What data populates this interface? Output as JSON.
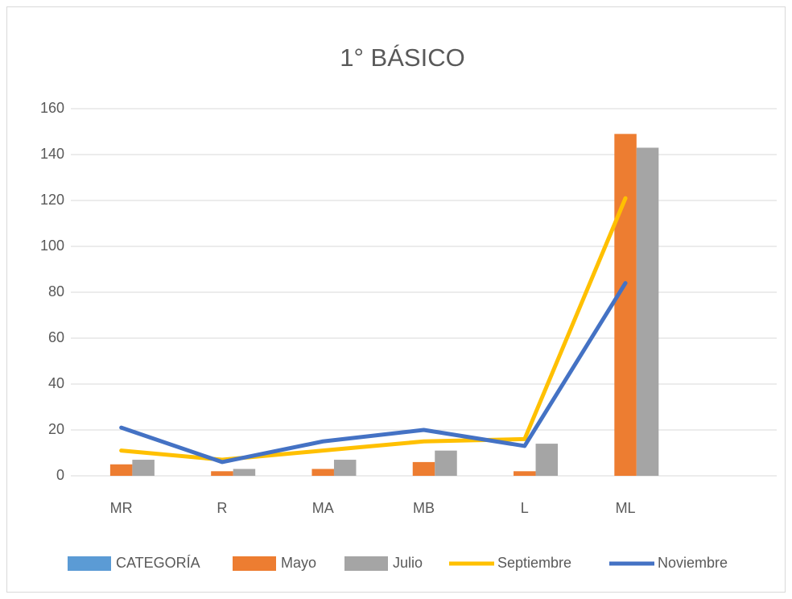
{
  "chart_data": {
    "type": "combo",
    "title": "1° BÁSICO",
    "categories": [
      "MR",
      "R",
      "MA",
      "MB",
      "L",
      "ML",
      null
    ],
    "series": [
      {
        "name": "CATEGORÍA",
        "type": "bar",
        "color": "#5b9bd5",
        "values": [
          null,
          null,
          null,
          null,
          null,
          null,
          null
        ]
      },
      {
        "name": "Mayo",
        "type": "bar",
        "color": "#ed7d31",
        "values": [
          5,
          2,
          3,
          6,
          2,
          149,
          null
        ]
      },
      {
        "name": "Julio",
        "type": "bar",
        "color": "#a5a5a5",
        "values": [
          7,
          3,
          7,
          11,
          14,
          143,
          null
        ]
      },
      {
        "name": "Septiembre",
        "type": "line",
        "color": "#ffc000",
        "values": [
          11,
          7,
          11,
          15,
          16,
          121,
          null
        ]
      },
      {
        "name": "Noviembre",
        "type": "line",
        "color": "#4472c4",
        "values": [
          21,
          6,
          15,
          20,
          13,
          84,
          null
        ]
      }
    ],
    "ylim": [
      0,
      160
    ],
    "yticks": [
      0,
      20,
      40,
      60,
      80,
      100,
      120,
      140,
      160
    ],
    "grid": true,
    "legend": "bottom"
  }
}
